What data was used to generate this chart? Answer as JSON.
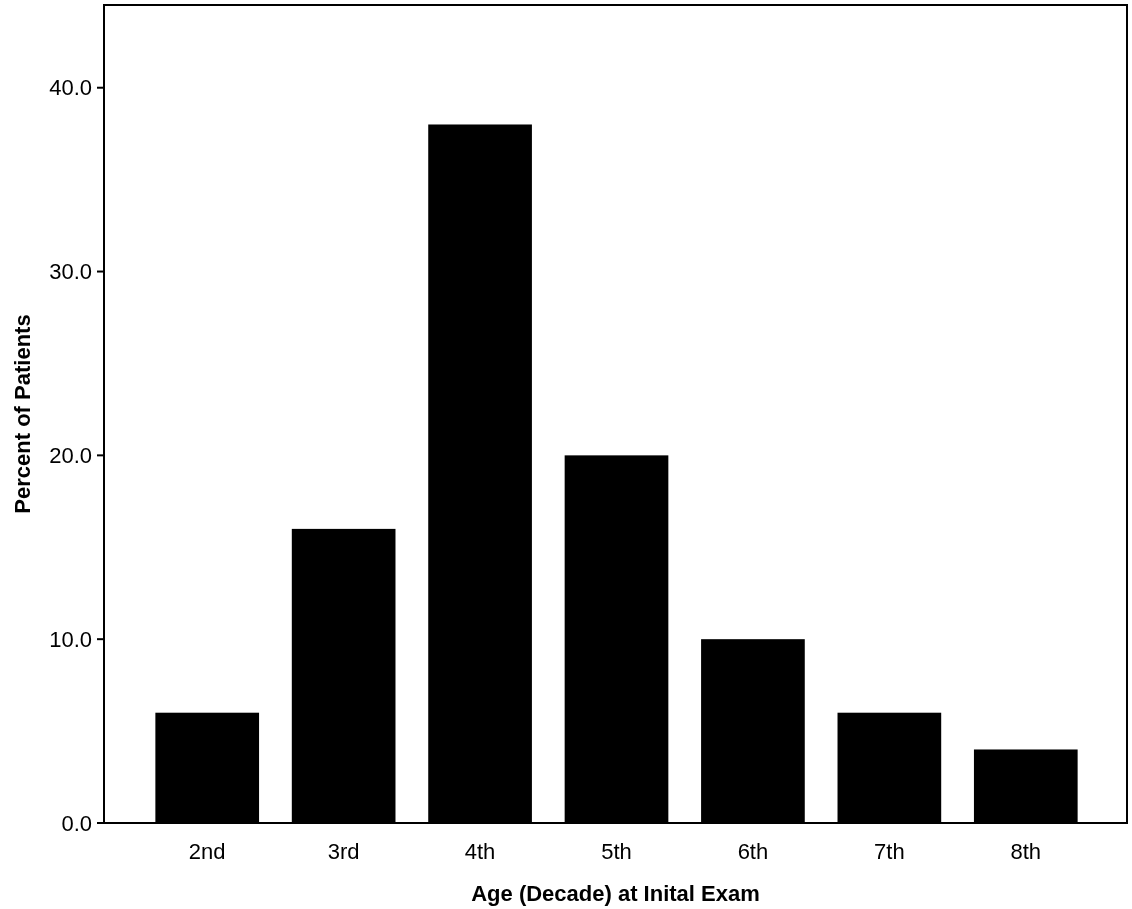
{
  "chart_data": {
    "type": "bar",
    "xlabel": "Age (Decade) at Inital Exam",
    "ylabel": "Percent of Patients",
    "categories": [
      "2nd",
      "3rd",
      "4th",
      "5th",
      "6th",
      "7th",
      "8th"
    ],
    "values": [
      6,
      16,
      38,
      20,
      10,
      6,
      4
    ],
    "color": "#000000",
    "ylim": [
      0,
      44.5
    ],
    "yticks": [
      {
        "value": 0,
        "label": "0.0"
      },
      {
        "value": 10,
        "label": "10.0"
      },
      {
        "value": 20,
        "label": "20.0"
      },
      {
        "value": 30,
        "label": "30.0"
      },
      {
        "value": 40,
        "label": "40.0"
      }
    ],
    "grid": false
  }
}
